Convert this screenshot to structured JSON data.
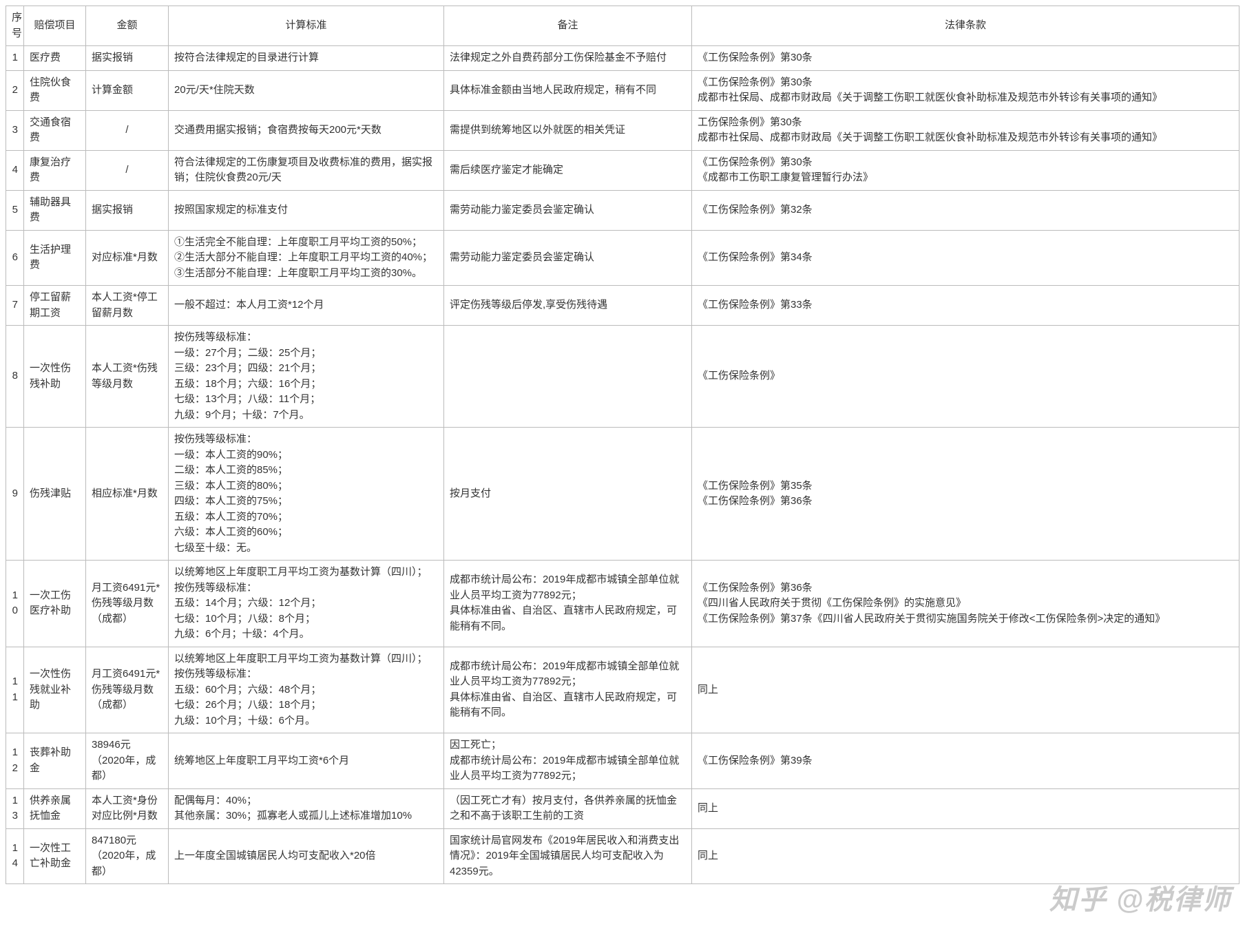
{
  "watermark": "知乎 @税律师",
  "columns": [
    "序号",
    "赔偿项目",
    "金额",
    "计算标准",
    "备注",
    "法律条款"
  ],
  "column_align": [
    "right",
    "left",
    "left",
    "left",
    "left",
    "left"
  ],
  "border_color": "#bbbbbb",
  "background_color": "#ffffff",
  "text_color": "#333333",
  "font_size_pt": 11,
  "rows": [
    {
      "seq": "1",
      "item": "医疗费",
      "amount": "据实报销",
      "calc": "按符合法律规定的目录进行计算",
      "note": "法律规定之外自费药部分工伤保险基金不予赔付",
      "law": "《工伤保险条例》第30条"
    },
    {
      "seq": "2",
      "item": "住院伙食费",
      "amount": "计算金额",
      "calc": "20元/天*住院天数",
      "note": "具体标准金额由当地人民政府规定，稍有不同",
      "law": "《工伤保险条例》第30条\n成都市社保局、成都市财政局《关于调整工伤职工就医伙食补助标准及规范市外转诊有关事项的通知》"
    },
    {
      "seq": "3",
      "item": "交通食宿费",
      "amount": "/",
      "amount_center": true,
      "calc": "交通费用据实报销；食宿费按每天200元*天数",
      "note": "需提供到统筹地区以外就医的相关凭证",
      "law": "工伤保险条例》第30条\n成都市社保局、成都市财政局《关于调整工伤职工就医伙食补助标准及规范市外转诊有关事项的通知》"
    },
    {
      "seq": "4",
      "item": "康复治疗费",
      "amount": "/",
      "amount_center": true,
      "calc": "符合法律规定的工伤康复项目及收费标准的费用，据实报销；住院伙食费20元/天",
      "note": "需后续医疗鉴定才能确定",
      "law": "《工伤保险条例》第30条\n《成都市工伤职工康复管理暂行办法》"
    },
    {
      "seq": "5",
      "item": "辅助器具费",
      "amount": "据实报销",
      "calc": "按照国家规定的标准支付",
      "note": "需劳动能力鉴定委员会鉴定确认",
      "law": "《工伤保险条例》第32条"
    },
    {
      "seq": "6",
      "item": "生活护理费",
      "amount": "对应标准*月数",
      "calc": "①生活完全不能自理：上年度职工月平均工资的50%；\n②生活大部分不能自理：上年度职工月平均工资的40%；\n③生活部分不能自理：上年度职工月平均工资的30%。",
      "note": "需劳动能力鉴定委员会鉴定确认",
      "law": "《工伤保险条例》第34条"
    },
    {
      "seq": "7",
      "item": "停工留薪期工资",
      "amount": "本人工资*停工留薪月数",
      "calc": "一般不超过：本人月工资*12个月",
      "note": "评定伤残等级后停发,享受伤残待遇",
      "law": "《工伤保险条例》第33条"
    },
    {
      "seq": "8",
      "item": "一次性伤残补助",
      "amount": "本人工资*伤残等级月数",
      "calc": "按伤残等级标准：\n一级：27个月；二级：25个月；\n三级：23个月；四级：21个月；\n五级：18个月；六级：16个月；\n七级：13个月；八级：11个月；\n九级：9个月；十级：7个月。",
      "note": "",
      "law": "《工伤保险条例》"
    },
    {
      "seq": "9",
      "item": "伤残津贴",
      "amount": "相应标准*月数",
      "calc": "按伤残等级标准：\n一级：本人工资的90%；\n二级：本人工资的85%；\n三级：本人工资的80%；\n四级：本人工资的75%；\n五级：本人工资的70%；\n六级：本人工资的60%；\n七级至十级：无。",
      "note": "按月支付",
      "law": "《工伤保险条例》第35条\n《工伤保险条例》第36条"
    },
    {
      "seq": "10",
      "item": "一次工伤医疗补助",
      "amount": "月工资6491元*伤残等级月数（成都）",
      "calc": "以统筹地区上年度职工月平均工资为基数计算（四川）；\n按伤残等级标准：\n五级：14个月；六级：12个月；\n七级：10个月；八级：8个月；\n九级：6个月；十级：4个月。",
      "note": "成都市统计局公布：2019年成都市城镇全部单位就业人员平均工资为77892元；\n具体标准由省、自治区、直辖市人民政府规定，可能稍有不同。",
      "law": "《工伤保险条例》第36条\n《四川省人民政府关于贯彻《工伤保险条例》的实施意见》\n《工伤保险条例》第37条《四川省人民政府关于贯彻实施国务院关于修改<工伤保险条例>决定的通知》"
    },
    {
      "seq": "11",
      "item": "一次性伤残就业补助",
      "amount": "月工资6491元*伤残等级月数（成都）",
      "calc": "以统筹地区上年度职工月平均工资为基数计算（四川）；\n按伤残等级标准：\n五级：60个月；六级：48个月；\n七级：26个月；八级：18个月；\n九级：10个月；十级：6个月。",
      "note": "成都市统计局公布：2019年成都市城镇全部单位就业人员平均工资为77892元；\n具体标准由省、自治区、直辖市人民政府规定，可能稍有不同。",
      "law": "同上"
    },
    {
      "seq": "12",
      "item": "丧葬补助金",
      "amount": "38946元\n（2020年，成都）",
      "calc": "统筹地区上年度职工月平均工资*6个月",
      "note": "因工死亡；\n成都市统计局公布：2019年成都市城镇全部单位就业人员平均工资为77892元；",
      "law": "《工伤保险条例》第39条"
    },
    {
      "seq": "13",
      "item": "供养亲属抚恤金",
      "amount": "本人工资*身份对应比例*月数",
      "calc": "配偶每月：40%；\n其他亲属：30%；孤寡老人或孤儿上述标准增加10%",
      "note": "（因工死亡才有）按月支付，各供养亲属的抚恤金之和不高于该职工生前的工资",
      "law": "同上"
    },
    {
      "seq": "14",
      "item": "一次性工亡补助金",
      "amount": "847180元\n（2020年，成都）",
      "calc": "上一年度全国城镇居民人均可支配收入*20倍",
      "note": "国家统计局官网发布《2019年居民收入和消费支出情况》：2019年全国城镇居民人均可支配收入为42359元。",
      "law": "同上"
    }
  ]
}
